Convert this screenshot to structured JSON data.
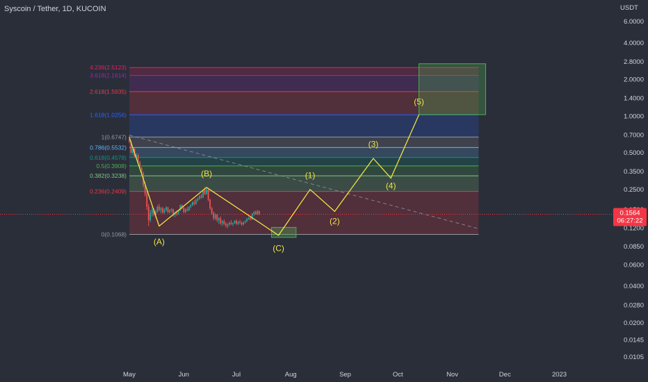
{
  "header": {
    "symbol": "Syscoin / Tether, 1D, KUCOIN"
  },
  "price_axis": {
    "unit": "USDT",
    "ticks": [
      "6.0000",
      "4.0000",
      "2.8000",
      "2.0000",
      "1.4000",
      "1.0000",
      "0.7000",
      "0.5000",
      "0.3500",
      "0.2500",
      "0.1700",
      "0.1200",
      "0.0850",
      "0.0600",
      "0.0400",
      "0.0280",
      "0.0200",
      "0.0145",
      "0.0105"
    ],
    "last_price": "0.1564",
    "countdown": "06:27:22"
  },
  "colors": {
    "background": "#2a2e39",
    "wave_path": "#f0e442",
    "last_price": "#f23645",
    "target_box": "#4caf50"
  },
  "chart_data": {
    "type": "candlestick",
    "title": "Syscoin / Tether, 1D, KUCOIN",
    "x_ticks": [
      "May",
      "Jun",
      "Jul",
      "Aug",
      "Sep",
      "Oct",
      "Nov",
      "Dec",
      "2023"
    ],
    "y_scale": "log",
    "ylim": [
      0.0095,
      7.5
    ],
    "fib_levels": [
      {
        "label": "0(0.1068)",
        "price": 0.1068,
        "color": "#9598a1"
      },
      {
        "label": "0.236(0.2409)",
        "price": 0.2409,
        "color": "#f23645"
      },
      {
        "label": "0.382(0.3238)",
        "price": 0.3238,
        "color": "#81c784"
      },
      {
        "label": "0.5(0.3908)",
        "price": 0.3908,
        "color": "#4caf50"
      },
      {
        "label": "0.618(0.4578)",
        "price": 0.4578,
        "color": "#089981"
      },
      {
        "label": "0.786(0.5532)",
        "price": 0.5532,
        "color": "#64b5f6"
      },
      {
        "label": "1(0.6747)",
        "price": 0.6747,
        "color": "#9598a1"
      },
      {
        "label": "1.618(1.0256)",
        "price": 1.0256,
        "color": "#2962ff"
      },
      {
        "label": "2.618(1.5935)",
        "price": 1.5935,
        "color": "#f23645"
      },
      {
        "label": "3.618(2.1614)",
        "price": 2.1614,
        "color": "#9c27b0"
      },
      {
        "label": "4.236(2.5123)",
        "price": 2.5123,
        "color": "#e91e63"
      }
    ],
    "wave_points": [
      {
        "date": "2022-05-01",
        "price": 0.67
      },
      {
        "date": "2022-05-18",
        "price": 0.125
      },
      {
        "date": "2022-06-14",
        "price": 0.26
      },
      {
        "date": "2022-07-25",
        "price": 0.105
      },
      {
        "date": "2022-08-12",
        "price": 0.25
      },
      {
        "date": "2022-08-26",
        "price": 0.165
      },
      {
        "date": "2022-09-17",
        "price": 0.45
      },
      {
        "date": "2022-09-27",
        "price": 0.31
      },
      {
        "date": "2022-10-13",
        "price": 1.03
      }
    ],
    "wave_labels": [
      {
        "text": "(A)",
        "date": "2022-05-18",
        "price": 0.088
      },
      {
        "text": "(B)",
        "date": "2022-06-14",
        "price": 0.32
      },
      {
        "text": "(C)",
        "date": "2022-07-25",
        "price": 0.078
      },
      {
        "text": "(1)",
        "date": "2022-08-12",
        "price": 0.31
      },
      {
        "text": "(2)",
        "date": "2022-08-26",
        "price": 0.13
      },
      {
        "text": "(3)",
        "date": "2022-09-17",
        "price": 0.56
      },
      {
        "text": "(4)",
        "date": "2022-09-27",
        "price": 0.255
      },
      {
        "text": "(5)",
        "date": "2022-10-13",
        "price": 1.25
      }
    ],
    "trendline": {
      "start": {
        "date": "2022-05-01",
        "price": 0.7
      },
      "end": {
        "date": "2022-11-15",
        "price": 0.12
      }
    },
    "buy_zone": {
      "date_from": "2022-07-21",
      "date_to": "2022-08-04",
      "price_low": 0.101,
      "price_high": 0.122
    },
    "target_zone": {
      "date_from": "2022-10-13",
      "date_to": "2022-11-20",
      "price_low": 1.03,
      "price_high": 2.7
    },
    "fib_range": {
      "date_from": "2022-05-01",
      "date_to": "2022-11-16"
    },
    "candles": [
      {
        "date": "2022-05-01",
        "o": 0.64,
        "h": 0.69,
        "l": 0.6,
        "c": 0.62
      },
      {
        "date": "2022-05-02",
        "o": 0.62,
        "h": 0.63,
        "l": 0.5,
        "c": 0.5
      },
      {
        "date": "2022-05-03",
        "o": 0.5,
        "h": 0.56,
        "l": 0.48,
        "c": 0.54
      },
      {
        "date": "2022-05-04",
        "o": 0.54,
        "h": 0.55,
        "l": 0.46,
        "c": 0.47
      },
      {
        "date": "2022-05-05",
        "o": 0.47,
        "h": 0.5,
        "l": 0.44,
        "c": 0.48
      },
      {
        "date": "2022-05-06",
        "o": 0.48,
        "h": 0.49,
        "l": 0.41,
        "c": 0.42
      },
      {
        "date": "2022-05-07",
        "o": 0.42,
        "h": 0.43,
        "l": 0.37,
        "c": 0.38
      },
      {
        "date": "2022-05-08",
        "o": 0.38,
        "h": 0.38,
        "l": 0.33,
        "c": 0.34
      },
      {
        "date": "2022-05-09",
        "o": 0.34,
        "h": 0.35,
        "l": 0.26,
        "c": 0.27
      },
      {
        "date": "2022-05-10",
        "o": 0.27,
        "h": 0.29,
        "l": 0.22,
        "c": 0.23
      },
      {
        "date": "2022-05-11",
        "o": 0.23,
        "h": 0.24,
        "l": 0.17,
        "c": 0.18
      },
      {
        "date": "2022-05-12",
        "o": 0.18,
        "h": 0.19,
        "l": 0.125,
        "c": 0.14
      },
      {
        "date": "2022-05-13",
        "o": 0.14,
        "h": 0.17,
        "l": 0.135,
        "c": 0.16
      },
      {
        "date": "2022-05-14",
        "o": 0.16,
        "h": 0.18,
        "l": 0.15,
        "c": 0.17
      },
      {
        "date": "2022-05-15",
        "o": 0.17,
        "h": 0.175,
        "l": 0.15,
        "c": 0.155
      },
      {
        "date": "2022-05-16",
        "o": 0.155,
        "h": 0.17,
        "l": 0.145,
        "c": 0.165
      },
      {
        "date": "2022-05-17",
        "o": 0.165,
        "h": 0.185,
        "l": 0.16,
        "c": 0.18
      },
      {
        "date": "2022-05-18",
        "o": 0.18,
        "h": 0.19,
        "l": 0.165,
        "c": 0.17
      },
      {
        "date": "2022-05-19",
        "o": 0.17,
        "h": 0.18,
        "l": 0.16,
        "c": 0.175
      },
      {
        "date": "2022-05-20",
        "o": 0.175,
        "h": 0.18,
        "l": 0.158,
        "c": 0.162
      },
      {
        "date": "2022-05-21",
        "o": 0.162,
        "h": 0.175,
        "l": 0.158,
        "c": 0.17
      },
      {
        "date": "2022-05-22",
        "o": 0.17,
        "h": 0.182,
        "l": 0.165,
        "c": 0.178
      },
      {
        "date": "2022-05-23",
        "o": 0.178,
        "h": 0.18,
        "l": 0.16,
        "c": 0.163
      },
      {
        "date": "2022-05-24",
        "o": 0.163,
        "h": 0.172,
        "l": 0.158,
        "c": 0.168
      },
      {
        "date": "2022-05-25",
        "o": 0.168,
        "h": 0.176,
        "l": 0.162,
        "c": 0.172
      },
      {
        "date": "2022-05-26",
        "o": 0.172,
        "h": 0.174,
        "l": 0.15,
        "c": 0.155
      },
      {
        "date": "2022-05-27",
        "o": 0.155,
        "h": 0.165,
        "l": 0.148,
        "c": 0.16
      },
      {
        "date": "2022-05-28",
        "o": 0.16,
        "h": 0.168,
        "l": 0.152,
        "c": 0.158
      },
      {
        "date": "2022-05-29",
        "o": 0.158,
        "h": 0.17,
        "l": 0.155,
        "c": 0.168
      },
      {
        "date": "2022-05-30",
        "o": 0.168,
        "h": 0.188,
        "l": 0.165,
        "c": 0.185
      },
      {
        "date": "2022-05-31",
        "o": 0.185,
        "h": 0.19,
        "l": 0.172,
        "c": 0.176
      },
      {
        "date": "2022-06-01",
        "o": 0.176,
        "h": 0.18,
        "l": 0.16,
        "c": 0.163
      },
      {
        "date": "2022-06-02",
        "o": 0.163,
        "h": 0.175,
        "l": 0.16,
        "c": 0.172
      },
      {
        "date": "2022-06-03",
        "o": 0.172,
        "h": 0.18,
        "l": 0.165,
        "c": 0.168
      },
      {
        "date": "2022-06-04",
        "o": 0.168,
        "h": 0.182,
        "l": 0.166,
        "c": 0.18
      },
      {
        "date": "2022-06-05",
        "o": 0.18,
        "h": 0.19,
        "l": 0.175,
        "c": 0.186
      },
      {
        "date": "2022-06-06",
        "o": 0.186,
        "h": 0.2,
        "l": 0.182,
        "c": 0.196
      },
      {
        "date": "2022-06-07",
        "o": 0.196,
        "h": 0.205,
        "l": 0.185,
        "c": 0.19
      },
      {
        "date": "2022-06-08",
        "o": 0.19,
        "h": 0.21,
        "l": 0.188,
        "c": 0.205
      },
      {
        "date": "2022-06-09",
        "o": 0.205,
        "h": 0.215,
        "l": 0.198,
        "c": 0.21
      },
      {
        "date": "2022-06-10",
        "o": 0.21,
        "h": 0.225,
        "l": 0.205,
        "c": 0.22
      },
      {
        "date": "2022-06-11",
        "o": 0.22,
        "h": 0.23,
        "l": 0.21,
        "c": 0.215
      },
      {
        "date": "2022-06-12",
        "o": 0.215,
        "h": 0.25,
        "l": 0.212,
        "c": 0.245
      },
      {
        "date": "2022-06-13",
        "o": 0.245,
        "h": 0.26,
        "l": 0.225,
        "c": 0.23
      },
      {
        "date": "2022-06-14",
        "o": 0.23,
        "h": 0.255,
        "l": 0.225,
        "c": 0.25
      },
      {
        "date": "2022-06-15",
        "o": 0.25,
        "h": 0.252,
        "l": 0.2,
        "c": 0.205
      },
      {
        "date": "2022-06-16",
        "o": 0.205,
        "h": 0.21,
        "l": 0.17,
        "c": 0.175
      },
      {
        "date": "2022-06-17",
        "o": 0.175,
        "h": 0.18,
        "l": 0.155,
        "c": 0.16
      },
      {
        "date": "2022-06-18",
        "o": 0.16,
        "h": 0.165,
        "l": 0.14,
        "c": 0.145
      },
      {
        "date": "2022-06-19",
        "o": 0.145,
        "h": 0.16,
        "l": 0.14,
        "c": 0.155
      },
      {
        "date": "2022-06-20",
        "o": 0.155,
        "h": 0.158,
        "l": 0.135,
        "c": 0.14
      },
      {
        "date": "2022-06-21",
        "o": 0.14,
        "h": 0.148,
        "l": 0.13,
        "c": 0.145
      },
      {
        "date": "2022-06-22",
        "o": 0.145,
        "h": 0.15,
        "l": 0.128,
        "c": 0.132
      },
      {
        "date": "2022-06-23",
        "o": 0.132,
        "h": 0.14,
        "l": 0.125,
        "c": 0.137
      },
      {
        "date": "2022-06-24",
        "o": 0.137,
        "h": 0.142,
        "l": 0.128,
        "c": 0.13
      },
      {
        "date": "2022-06-25",
        "o": 0.13,
        "h": 0.135,
        "l": 0.122,
        "c": 0.126
      },
      {
        "date": "2022-06-26",
        "o": 0.126,
        "h": 0.132,
        "l": 0.12,
        "c": 0.129
      },
      {
        "date": "2022-06-27",
        "o": 0.129,
        "h": 0.136,
        "l": 0.125,
        "c": 0.133
      },
      {
        "date": "2022-06-28",
        "o": 0.133,
        "h": 0.14,
        "l": 0.128,
        "c": 0.13
      },
      {
        "date": "2022-06-29",
        "o": 0.13,
        "h": 0.134,
        "l": 0.125,
        "c": 0.132
      },
      {
        "date": "2022-06-30",
        "o": 0.132,
        "h": 0.14,
        "l": 0.13,
        "c": 0.138
      },
      {
        "date": "2022-07-01",
        "o": 0.138,
        "h": 0.142,
        "l": 0.128,
        "c": 0.131
      },
      {
        "date": "2022-07-02",
        "o": 0.131,
        "h": 0.138,
        "l": 0.127,
        "c": 0.135
      },
      {
        "date": "2022-07-03",
        "o": 0.135,
        "h": 0.141,
        "l": 0.13,
        "c": 0.133
      },
      {
        "date": "2022-07-04",
        "o": 0.133,
        "h": 0.137,
        "l": 0.126,
        "c": 0.129
      },
      {
        "date": "2022-07-05",
        "o": 0.129,
        "h": 0.136,
        "l": 0.127,
        "c": 0.134
      },
      {
        "date": "2022-07-06",
        "o": 0.134,
        "h": 0.14,
        "l": 0.131,
        "c": 0.137
      },
      {
        "date": "2022-07-07",
        "o": 0.137,
        "h": 0.146,
        "l": 0.135,
        "c": 0.143
      },
      {
        "date": "2022-07-08",
        "o": 0.143,
        "h": 0.15,
        "l": 0.14,
        "c": 0.147
      },
      {
        "date": "2022-07-09",
        "o": 0.147,
        "h": 0.149,
        "l": 0.139,
        "c": 0.142
      },
      {
        "date": "2022-07-10",
        "o": 0.142,
        "h": 0.16,
        "l": 0.14,
        "c": 0.158
      },
      {
        "date": "2022-07-11",
        "o": 0.158,
        "h": 0.166,
        "l": 0.152,
        "c": 0.163
      },
      {
        "date": "2022-07-12",
        "o": 0.163,
        "h": 0.168,
        "l": 0.155,
        "c": 0.157
      },
      {
        "date": "2022-07-13",
        "o": 0.157,
        "h": 0.17,
        "l": 0.154,
        "c": 0.166
      },
      {
        "date": "2022-07-14",
        "o": 0.166,
        "h": 0.168,
        "l": 0.154,
        "c": 0.1564
      }
    ]
  }
}
